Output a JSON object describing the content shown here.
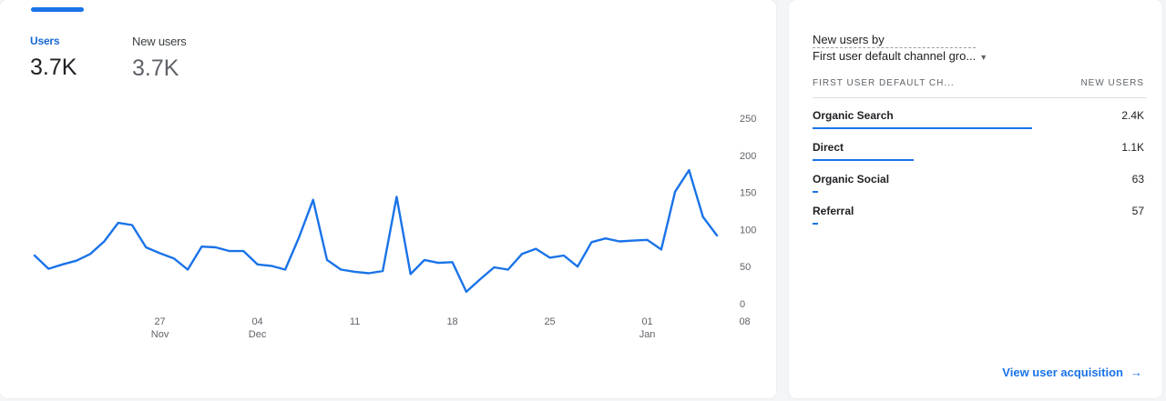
{
  "metrics": {
    "users": {
      "label": "Users",
      "value": "3.7K"
    },
    "new_users": {
      "label": "New users",
      "value": "3.7K"
    }
  },
  "chart_data": {
    "type": "line",
    "ylim": [
      0,
      250
    ],
    "y_ticks": [
      0,
      50,
      100,
      150,
      200,
      250
    ],
    "x_tick_labels": [
      {
        "day": "27",
        "month": "Nov"
      },
      {
        "day": "04",
        "month": "Dec"
      },
      {
        "day": "11",
        "month": ""
      },
      {
        "day": "18",
        "month": ""
      },
      {
        "day": "25",
        "month": ""
      },
      {
        "day": "01",
        "month": "Jan"
      },
      {
        "day": "08",
        "month": ""
      }
    ],
    "grid": false,
    "series": [
      {
        "color": "#1a73e8",
        "values": [
          65,
          47,
          53,
          58,
          67,
          84,
          109,
          106,
          76,
          68,
          61,
          46,
          77,
          76,
          71,
          71,
          53,
          51,
          46,
          90,
          140,
          59,
          46,
          43,
          41,
          44,
          144,
          40,
          59,
          55,
          56,
          16,
          33,
          49,
          46,
          67,
          74,
          62,
          65,
          50,
          83,
          88,
          84,
          85,
          86,
          73,
          151,
          180,
          117,
          92
        ]
      }
    ]
  },
  "breakdown": {
    "title": "New users by",
    "dimension": "First user default channel gro...",
    "col_dimension": "FIRST USER DEFAULT CH...",
    "col_value": "NEW USERS",
    "rows": [
      {
        "label": "Organic Search",
        "value": "2.4K",
        "share": 0.65
      },
      {
        "label": "Direct",
        "value": "1.1K",
        "share": 0.3
      },
      {
        "label": "Organic Social",
        "value": "63",
        "share": 0.017
      },
      {
        "label": "Referral",
        "value": "57",
        "share": 0.015
      }
    ],
    "link_label": "View user acquisition"
  }
}
